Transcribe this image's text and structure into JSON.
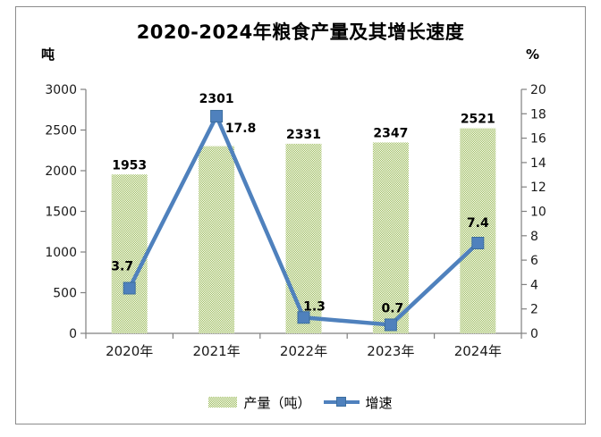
{
  "chart": {
    "title": "2020-2024年粮食产量及其增长速度",
    "left_axis_unit": "吨",
    "right_axis_unit": "%",
    "series_labels": {
      "production": "产量（吨）",
      "growth": "增速"
    }
  },
  "chart_data": {
    "type": "combo-bar-line",
    "title": "2020-2024年粮食产量及其增长速度",
    "categories": [
      "2020年",
      "2021年",
      "2022年",
      "2023年",
      "2024年"
    ],
    "series": [
      {
        "name": "产量（吨）",
        "type": "bar",
        "axis": "left",
        "unit": "吨",
        "values": [
          1953,
          2301,
          2331,
          2347,
          2521
        ]
      },
      {
        "name": "增速",
        "type": "line",
        "axis": "right",
        "unit": "%",
        "values": [
          3.7,
          17.8,
          1.3,
          0.7,
          7.4
        ]
      }
    ],
    "left_axis": {
      "label": "吨",
      "min": 0,
      "max": 3000,
      "step": 500
    },
    "right_axis": {
      "label": "%",
      "min": 0,
      "max": 20,
      "step": 2
    },
    "legend_position": "bottom",
    "grid": false,
    "data_labels": true
  },
  "colors": {
    "bar_fill": "#9bbb59",
    "bar_fill_bg": "#ffffff",
    "line": "#4f81bd",
    "marker_border": "#3c6e9e",
    "axis_line": "#808080",
    "tick_text": "#1a1a1a",
    "label_text": "#000000",
    "frame_border": "#8c8c8c",
    "background": "#ffffff"
  }
}
